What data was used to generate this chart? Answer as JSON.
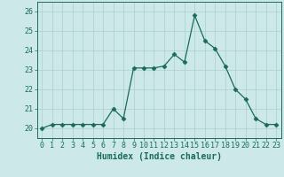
{
  "title": "",
  "xlabel": "Humidex (Indice chaleur)",
  "ylabel": "",
  "x": [
    0,
    1,
    2,
    3,
    4,
    5,
    6,
    7,
    8,
    9,
    10,
    11,
    12,
    13,
    14,
    15,
    16,
    17,
    18,
    19,
    20,
    21,
    22,
    23
  ],
  "y": [
    20.0,
    20.2,
    20.2,
    20.2,
    20.2,
    20.2,
    20.2,
    21.0,
    20.5,
    23.1,
    23.1,
    23.1,
    23.2,
    23.8,
    23.4,
    25.8,
    24.5,
    24.1,
    23.2,
    22.0,
    21.5,
    20.5,
    20.2,
    20.2
  ],
  "line_color": "#1a6b5a",
  "marker": "D",
  "marker_size": 2.5,
  "bg_color": "#cce8e8",
  "grid_color": "#aacfcf",
  "tick_color": "#1a6b5a",
  "label_color": "#1a6b5a",
  "ylim": [
    19.5,
    26.5
  ],
  "yticks": [
    20,
    21,
    22,
    23,
    24,
    25,
    26
  ],
  "xticks": [
    0,
    1,
    2,
    3,
    4,
    5,
    6,
    7,
    8,
    9,
    10,
    11,
    12,
    13,
    14,
    15,
    16,
    17,
    18,
    19,
    20,
    21,
    22,
    23
  ],
  "axis_label_fontsize": 7,
  "tick_fontsize": 6
}
